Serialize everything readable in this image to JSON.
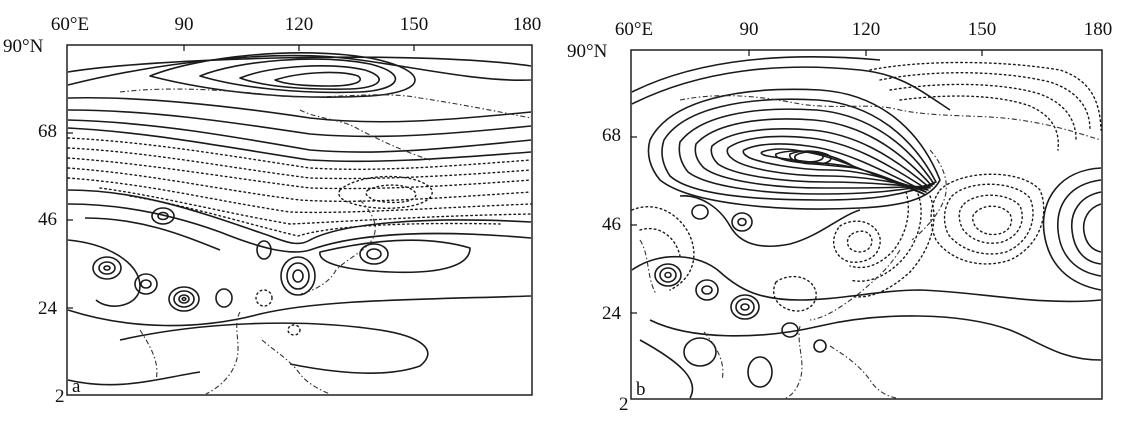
{
  "panels": [
    {
      "label": "a",
      "lon_ticks": [
        "60°E",
        "90",
        "120",
        "150",
        "180"
      ],
      "lat_ticks": [
        "90°N",
        "68",
        "46",
        "24",
        "2"
      ]
    },
    {
      "label": "b",
      "lon_ticks": [
        "60°E",
        "90",
        "120",
        "150",
        "180"
      ],
      "lat_ticks": [
        "90°N",
        "68",
        "46",
        "24",
        "2"
      ]
    }
  ]
}
